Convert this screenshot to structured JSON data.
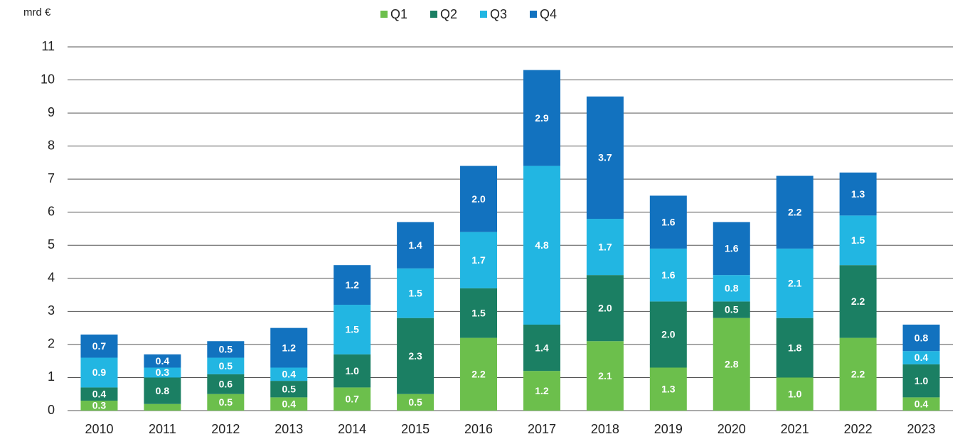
{
  "chart_data": {
    "type": "stacked_bar",
    "y_label": "mrd €",
    "categories": [
      "2010",
      "2011",
      "2012",
      "2013",
      "2014",
      "2015",
      "2016",
      "2017",
      "2018",
      "2019",
      "2020",
      "2021",
      "2022",
      "2023"
    ],
    "series": [
      {
        "name": "Q1",
        "color": "#6cbf4c",
        "values": [
          0.3,
          0.2,
          0.5,
          0.4,
          0.7,
          0.5,
          2.2,
          1.2,
          2.1,
          1.3,
          2.8,
          1.0,
          2.2,
          0.4
        ],
        "value_labels": [
          "0.3",
          null,
          "0.5",
          "0.4",
          "0.7",
          "0.5",
          "2.2",
          "1.2",
          "2.1",
          "1.3",
          "2.8",
          "1.0",
          "2.2",
          "0.4"
        ]
      },
      {
        "name": "Q2",
        "color": "#1b7f63",
        "values": [
          0.4,
          0.8,
          0.6,
          0.5,
          1.0,
          2.3,
          1.5,
          1.4,
          2.0,
          2.0,
          0.5,
          1.8,
          2.2,
          1.0
        ],
        "value_labels": [
          "0.4",
          "0.8",
          "0.6",
          "0.5",
          "1.0",
          "2.3",
          "1.5",
          "1.4",
          "2.0",
          "2.0",
          "0.5",
          "1.8",
          "2.2",
          "1.0"
        ]
      },
      {
        "name": "Q3",
        "color": "#22b6e2",
        "values": [
          0.9,
          0.3,
          0.5,
          0.4,
          1.5,
          1.5,
          1.7,
          4.8,
          1.7,
          1.6,
          0.8,
          2.1,
          1.5,
          0.4
        ],
        "value_labels": [
          "0.9",
          "0.3",
          "0.5",
          "0.4",
          "1.5",
          "1.5",
          "1.7",
          "4.8",
          "1.7",
          "1.6",
          "0.8",
          "2.1",
          "1.5",
          "0.4"
        ]
      },
      {
        "name": "Q4",
        "color": "#1272bf",
        "values": [
          0.7,
          0.4,
          0.5,
          1.2,
          1.2,
          1.4,
          2.0,
          2.9,
          3.7,
          1.6,
          1.6,
          2.2,
          1.3,
          0.8
        ],
        "value_labels": [
          "0.7",
          "0.4",
          "0.5",
          "1.2",
          "1.2",
          "1.4",
          "2.0",
          "2.9",
          "3.7",
          "1.6",
          "1.6",
          "2.2",
          "1.3",
          "0.8"
        ]
      }
    ],
    "ylim": [
      0,
      11
    ],
    "yticks": [
      0,
      1,
      2,
      3,
      4,
      5,
      6,
      7,
      8,
      9,
      10,
      11
    ],
    "grid": true,
    "legend": "top"
  }
}
